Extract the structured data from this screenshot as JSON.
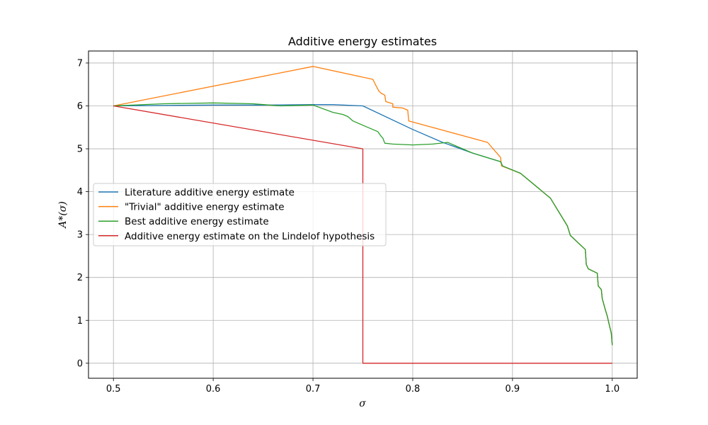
{
  "chart_data": {
    "type": "line",
    "title": "Additive energy estimates",
    "xlabel": "σ",
    "ylabel": "A*(σ)",
    "xlim": [
      0.475,
      1.025
    ],
    "ylim": [
      -0.35,
      7.28
    ],
    "xticks": [
      0.5,
      0.6,
      0.7,
      0.8,
      0.9,
      1.0
    ],
    "xtick_labels": [
      "0.5",
      "0.6",
      "0.7",
      "0.8",
      "0.9",
      "1.0"
    ],
    "yticks": [
      0,
      1,
      2,
      3,
      4,
      5,
      6,
      7
    ],
    "ytick_labels": [
      "0",
      "1",
      "2",
      "3",
      "4",
      "5",
      "6",
      "7"
    ],
    "grid": true,
    "legend_position": "center-left",
    "series": [
      {
        "name": "Literature additive energy estimate",
        "color": "#1f77b4",
        "x": [
          0.5,
          0.55,
          0.6,
          0.65,
          0.7,
          0.72,
          0.75,
          0.8,
          0.83,
          0.86,
          0.888,
          0.89,
          0.908,
          0.938,
          0.955,
          0.958,
          0.973,
          0.974,
          0.976,
          0.985,
          0.986,
          0.989,
          0.99,
          0.991,
          0.993,
          0.995,
          0.997,
          0.999,
          1.0
        ],
        "y": [
          6.0,
          6.01,
          6.02,
          6.02,
          6.03,
          6.03,
          6.0,
          5.45,
          5.15,
          4.9,
          4.7,
          4.6,
          4.43,
          3.85,
          3.2,
          2.98,
          2.65,
          2.3,
          2.2,
          2.1,
          1.8,
          1.72,
          1.5,
          1.42,
          1.25,
          1.1,
          0.9,
          0.7,
          0.42
        ]
      },
      {
        "name": "\"Trivial\" additive energy estimate",
        "color": "#ff7f0e",
        "x": [
          0.5,
          0.7,
          0.76,
          0.763,
          0.766,
          0.768,
          0.772,
          0.773,
          0.78,
          0.78,
          0.79,
          0.795,
          0.796,
          0.875,
          0.888,
          0.889,
          0.908,
          0.938,
          0.955,
          0.958,
          0.973,
          0.974,
          0.976,
          0.985,
          0.986,
          0.989,
          0.99,
          0.991,
          0.993,
          0.995,
          0.997,
          0.999,
          1.0
        ],
        "y": [
          6.0,
          6.92,
          6.62,
          6.48,
          6.35,
          6.3,
          6.25,
          6.1,
          6.05,
          5.97,
          5.95,
          5.9,
          5.65,
          5.15,
          4.8,
          4.6,
          4.43,
          3.85,
          3.2,
          2.98,
          2.65,
          2.3,
          2.2,
          2.1,
          1.8,
          1.72,
          1.5,
          1.42,
          1.25,
          1.1,
          0.9,
          0.7,
          0.42
        ]
      },
      {
        "name": "Best additive energy estimate",
        "color": "#2ca02c",
        "x": [
          0.5,
          0.55,
          0.6,
          0.64,
          0.667,
          0.7,
          0.72,
          0.73,
          0.735,
          0.74,
          0.75,
          0.765,
          0.768,
          0.77,
          0.772,
          0.78,
          0.8,
          0.82,
          0.835,
          0.86,
          0.888,
          0.89,
          0.908,
          0.938,
          0.955,
          0.958,
          0.973,
          0.974,
          0.976,
          0.985,
          0.986,
          0.989,
          0.99,
          0.991,
          0.993,
          0.995,
          0.997,
          0.999,
          1.0
        ],
        "y": [
          6.0,
          6.05,
          6.07,
          6.05,
          6.0,
          6.02,
          5.85,
          5.8,
          5.75,
          5.65,
          5.55,
          5.4,
          5.3,
          5.25,
          5.13,
          5.11,
          5.09,
          5.11,
          5.15,
          4.9,
          4.7,
          4.6,
          4.43,
          3.85,
          3.2,
          2.98,
          2.65,
          2.3,
          2.2,
          2.1,
          1.8,
          1.72,
          1.5,
          1.42,
          1.25,
          1.1,
          0.9,
          0.7,
          0.42
        ]
      },
      {
        "name": "Additive energy estimate on the Lindelof hypothesis",
        "color": "#d62728",
        "x": [
          0.5,
          0.75,
          0.75,
          1.0
        ],
        "y": [
          6.0,
          5.0,
          0.0,
          0.0
        ]
      }
    ]
  }
}
